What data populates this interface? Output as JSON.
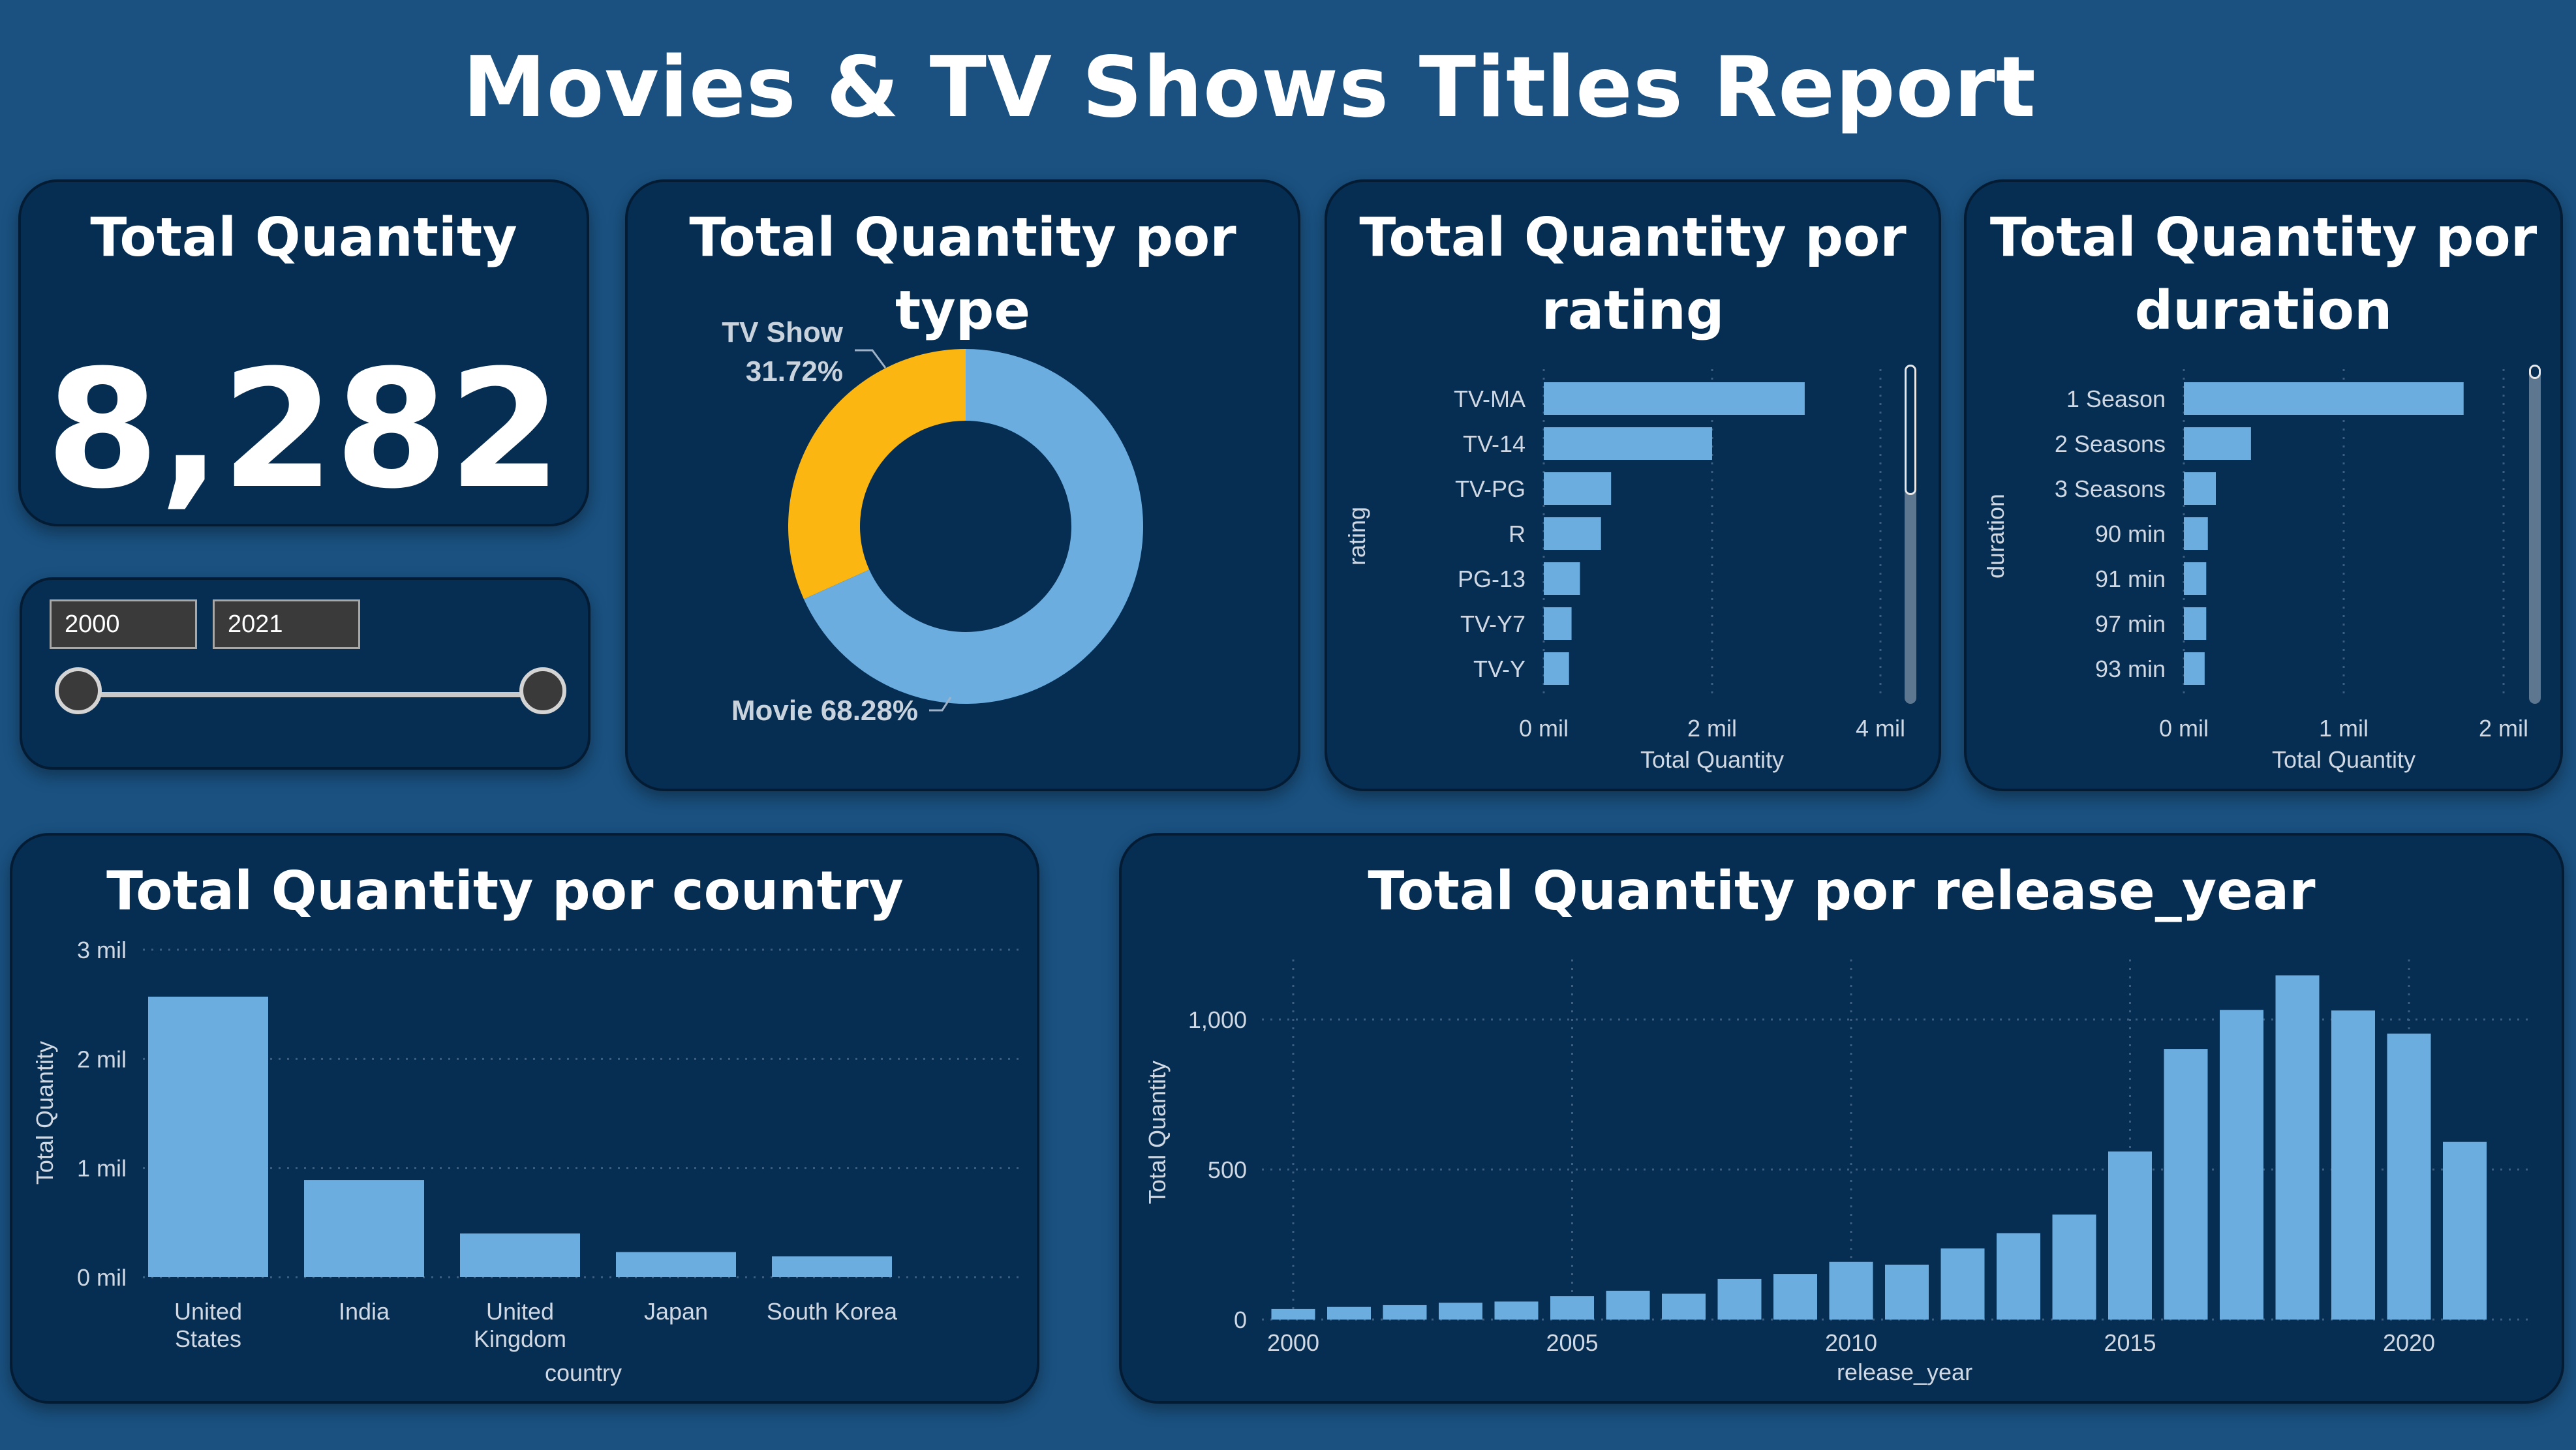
{
  "report_title": "Movies & TV Shows Titles Report",
  "colors": {
    "background": "#1a5180",
    "card": "#062d52",
    "bar": "#6cade0",
    "donut_tv": "#fbb611",
    "donut_movie": "#6cade0",
    "axis_text": "#cfd8e3"
  },
  "kpi": {
    "title": "Total Quantity",
    "value": "8,282"
  },
  "slicer": {
    "start_value": "2000",
    "end_value": "2021"
  },
  "chart_data": [
    {
      "id": "type",
      "type": "pie",
      "title": "Total Quantity por type",
      "donut": true,
      "slices": [
        {
          "name": "Movie",
          "percent": 68.28,
          "label": "Movie 68.28%"
        },
        {
          "name": "TV Show",
          "percent": 31.72,
          "label_line1": "TV Show",
          "label_line2": "31.72%"
        }
      ]
    },
    {
      "id": "rating",
      "type": "bar",
      "orientation": "horizontal",
      "title_line1": "Total Quantity por",
      "title_line2": "rating",
      "xlabel": "Total Quantity",
      "ylabel": "rating",
      "categories": [
        "TV-MA",
        "TV-14",
        "TV-PG",
        "R",
        "PG-13",
        "TV-Y7",
        "TV-Y"
      ],
      "values": [
        3.1,
        2.0,
        0.8,
        0.68,
        0.43,
        0.33,
        0.3
      ],
      "value_unit": "mil",
      "xlim": [
        0,
        4
      ],
      "xticks": [
        0,
        2,
        4
      ],
      "xtick_labels": [
        "0 mil",
        "2 mil",
        "4 mil"
      ],
      "scrollbar": true
    },
    {
      "id": "duration",
      "type": "bar",
      "orientation": "horizontal",
      "title_line1": "Total Quantity por",
      "title_line2": "duration",
      "xlabel": "Total Quantity",
      "ylabel": "duration",
      "categories": [
        "1 Season",
        "2 Seasons",
        "3 Seasons",
        "90 min",
        "91 min",
        "97 min",
        "93 min"
      ],
      "values": [
        1.75,
        0.42,
        0.2,
        0.15,
        0.14,
        0.14,
        0.13
      ],
      "value_unit": "mil",
      "xlim": [
        0,
        2
      ],
      "xticks": [
        0,
        1,
        2
      ],
      "xtick_labels": [
        "0 mil",
        "1 mil",
        "2 mil"
      ],
      "scrollbar": true
    },
    {
      "id": "country",
      "type": "bar",
      "title": "Total Quantity por country",
      "xlabel": "country",
      "ylabel": "Total Quantity",
      "categories": [
        "United States",
        "India",
        "United Kingdom",
        "Japan",
        "South Korea"
      ],
      "category_lines": [
        [
          "United",
          "States"
        ],
        [
          "India"
        ],
        [
          "United",
          "Kingdom"
        ],
        [
          "Japan"
        ],
        [
          "South Korea"
        ]
      ],
      "values": [
        2.57,
        0.89,
        0.4,
        0.23,
        0.19
      ],
      "value_unit": "mil",
      "ylim": [
        0,
        3
      ],
      "yticks": [
        0,
        1,
        2,
        3
      ],
      "ytick_labels": [
        "0 mil",
        "1 mil",
        "2 mil",
        "3 mil"
      ],
      "grid": true
    },
    {
      "id": "release_year",
      "type": "bar",
      "title": "Total Quantity por release_year",
      "xlabel": "release_year",
      "ylabel": "Total Quantity",
      "x": [
        2000,
        2001,
        2002,
        2003,
        2004,
        2005,
        2006,
        2007,
        2008,
        2009,
        2010,
        2011,
        2012,
        2013,
        2014,
        2015,
        2016,
        2017,
        2018,
        2019,
        2020,
        2021
      ],
      "values": [
        35,
        42,
        48,
        56,
        60,
        78,
        96,
        86,
        135,
        152,
        192,
        183,
        237,
        288,
        350,
        560,
        902,
        1032,
        1147,
        1030,
        953,
        592
      ],
      "ylim": [
        0,
        1200
      ],
      "yticks": [
        0,
        500,
        1000
      ],
      "ytick_labels": [
        "0",
        "500",
        "1,000"
      ],
      "xtick_values": [
        2000,
        2005,
        2010,
        2015,
        2020
      ],
      "xtick_labels": [
        "2000",
        "2005",
        "2010",
        "2015",
        "2020"
      ],
      "grid": true
    }
  ]
}
